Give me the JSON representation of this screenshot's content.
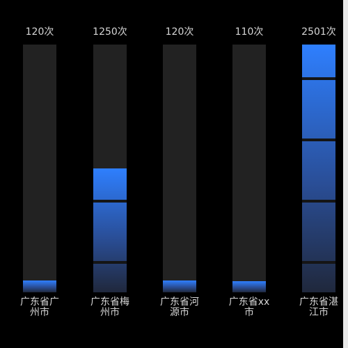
{
  "chart_data": {
    "type": "bar",
    "categories": [
      "广东省广州市",
      "广东省梅州市",
      "广东省河源市",
      "广东省xx市",
      "广东省湛江市"
    ],
    "values": [
      120,
      1250,
      120,
      110,
      2501
    ],
    "value_labels": [
      "120次",
      "1250次",
      "120次",
      "110次",
      "2501次"
    ],
    "ylim": [
      0,
      2501
    ],
    "grid": false,
    "legend": "none",
    "colors": {
      "bar_top": "#2e7ffe",
      "bar_mid": "#2a4f99",
      "bar_bottom": "#20283c",
      "track": "#222222",
      "separator": "#151515",
      "text": "#d6d6d6",
      "background": "#000000"
    }
  }
}
